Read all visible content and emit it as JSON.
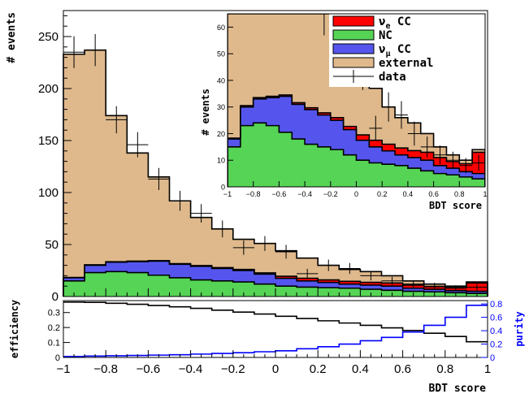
{
  "chart_data": [
    {
      "type": "bar",
      "stacked": true,
      "bin_edges": [
        -1,
        -0.9,
        -0.8,
        -0.7,
        -0.6,
        -0.5,
        -0.4,
        -0.3,
        -0.2,
        -0.1,
        0,
        0.1,
        0.2,
        0.3,
        0.4,
        0.5,
        0.6,
        0.7,
        0.8,
        0.9,
        1
      ],
      "xlabel": "BDT score",
      "ylabel": "# events",
      "xlim": [
        -1,
        1
      ],
      "ylim": [
        0,
        275
      ],
      "xticks": [
        -1,
        -0.8,
        -0.6,
        -0.4,
        -0.2,
        0,
        0.2,
        0.4,
        0.6,
        0.8,
        1
      ],
      "xtick_labels": [
        "−1",
        "−0.8",
        "−0.6",
        "−0.4",
        "−0.2",
        "0",
        "0.2",
        "0.4",
        "0.6",
        "0.8",
        "1"
      ],
      "yticks": [
        0,
        50,
        100,
        150,
        200,
        250
      ],
      "ytick_labels": [
        "0",
        "50",
        "100",
        "150",
        "200",
        "250"
      ],
      "series": [
        {
          "name": "ν_e CC",
          "color": "#ff0000",
          "values": [
            0.3,
            0.5,
            0.5,
            0.5,
            0.5,
            0.6,
            0.7,
            0.8,
            1,
            1.2,
            2,
            2.5,
            2.5,
            2.6,
            2.6,
            3,
            3,
            2.5,
            3,
            8
          ]
        },
        {
          "name": "NC",
          "color": "#55d455",
          "values": [
            15,
            23,
            24,
            23,
            20.5,
            18,
            16,
            15,
            14,
            12,
            10,
            9,
            8.5,
            8,
            7,
            6,
            5,
            4.5,
            3.7,
            3
          ]
        },
        {
          "name": "ν_μ CC",
          "color": "#5555ee",
          "values": [
            3,
            7,
            9,
            10.5,
            13.5,
            13,
            13,
            12,
            11,
            9.5,
            7.5,
            6,
            5,
            4,
            4,
            4,
            3,
            2.5,
            2,
            2
          ]
        },
        {
          "name": "external",
          "color": "#dfb98c",
          "values": [
            214.7,
            206.5,
            140.5,
            104,
            80.5,
            60.4,
            46.3,
            37.2,
            29,
            28.3,
            24.5,
            19.5,
            14,
            11.4,
            10.4,
            7,
            4,
            2.5,
            1.3,
            1
          ]
        }
      ],
      "data": {
        "name": "data",
        "values": [
          235,
          237,
          170,
          146,
          113,
          92,
          80,
          65,
          47,
          51,
          43,
          22,
          30,
          27,
          20,
          15,
          12,
          10,
          8,
          9
        ],
        "errors": [
          15.3,
          15.4,
          13,
          12.1,
          10.6,
          9.6,
          8.9,
          8.1,
          6.9,
          7.1,
          6.6,
          4.7,
          5.5,
          5.2,
          4.5,
          3.9,
          3.5,
          3.2,
          2.8,
          3
        ]
      },
      "inset": {
        "ylabel": "# events",
        "xlabel": "BDT score",
        "ylim": [
          0,
          65
        ],
        "xticks": [
          -1,
          -0.8,
          -0.6,
          -0.4,
          -0.2,
          0,
          0.2,
          0.4,
          0.6,
          0.8,
          1
        ],
        "xtick_labels": [
          "−1",
          "−0.8",
          "−0.6",
          "−0.4",
          "−0.2",
          "0",
          "0.2",
          "0.4",
          "0.6",
          "0.8",
          "1"
        ],
        "yticks": [
          0,
          10,
          20,
          30,
          40,
          50,
          60
        ],
        "ytick_labels": [
          "0",
          "10",
          "20",
          "30",
          "40",
          "50",
          "60"
        ]
      },
      "legend": {
        "placement": "top-right",
        "items": [
          {
            "base": "ν",
            "sub": "e",
            "rest": " CC",
            "color": "#ff0000",
            "kind": "box"
          },
          {
            "base": "NC",
            "sub": "",
            "rest": "",
            "color": "#55d455",
            "kind": "box"
          },
          {
            "base": "ν",
            "sub": "μ",
            "rest": " CC",
            "color": "#5555ee",
            "kind": "box"
          },
          {
            "base": "external",
            "sub": "",
            "rest": "",
            "color": "#dfb98c",
            "kind": "box"
          },
          {
            "base": "data",
            "sub": "",
            "rest": "",
            "color": "#000000",
            "kind": "cross"
          }
        ]
      }
    },
    {
      "type": "line",
      "step": true,
      "bin_edges": [
        -1,
        -0.9,
        -0.8,
        -0.7,
        -0.6,
        -0.5,
        -0.4,
        -0.3,
        -0.2,
        -0.1,
        0,
        0.1,
        0.2,
        0.3,
        0.4,
        0.5,
        0.6,
        0.7,
        0.8,
        0.9,
        1
      ],
      "xlabel": "BDT score",
      "ylabel_left": "efficiency",
      "ylabel_right": "purity",
      "ylim_left": [
        0,
        0.38
      ],
      "ylim_right": [
        0,
        0.85
      ],
      "yticks_left": [
        0,
        0.1,
        0.2,
        0.3
      ],
      "ytick_labels_left": [
        "0",
        "0.1",
        "0.2",
        "0.3"
      ],
      "yticks_right": [
        0,
        0.2,
        0.4,
        0.6,
        0.8
      ],
      "ytick_labels_right": [
        "0",
        "0.2",
        "0.4",
        "0.6",
        "0.8"
      ],
      "series": [
        {
          "name": "efficiency",
          "axis": "left",
          "color": "#000000",
          "values": [
            0.37,
            0.368,
            0.362,
            0.355,
            0.347,
            0.338,
            0.328,
            0.316,
            0.303,
            0.29,
            0.275,
            0.26,
            0.245,
            0.23,
            0.215,
            0.198,
            0.18,
            0.162,
            0.14,
            0.105
          ]
        },
        {
          "name": "purity",
          "axis": "right",
          "color": "#0000ff",
          "values": [
            0.015,
            0.02,
            0.025,
            0.03,
            0.035,
            0.04,
            0.05,
            0.06,
            0.07,
            0.085,
            0.1,
            0.13,
            0.16,
            0.2,
            0.25,
            0.3,
            0.38,
            0.48,
            0.6,
            0.78
          ]
        }
      ]
    }
  ]
}
